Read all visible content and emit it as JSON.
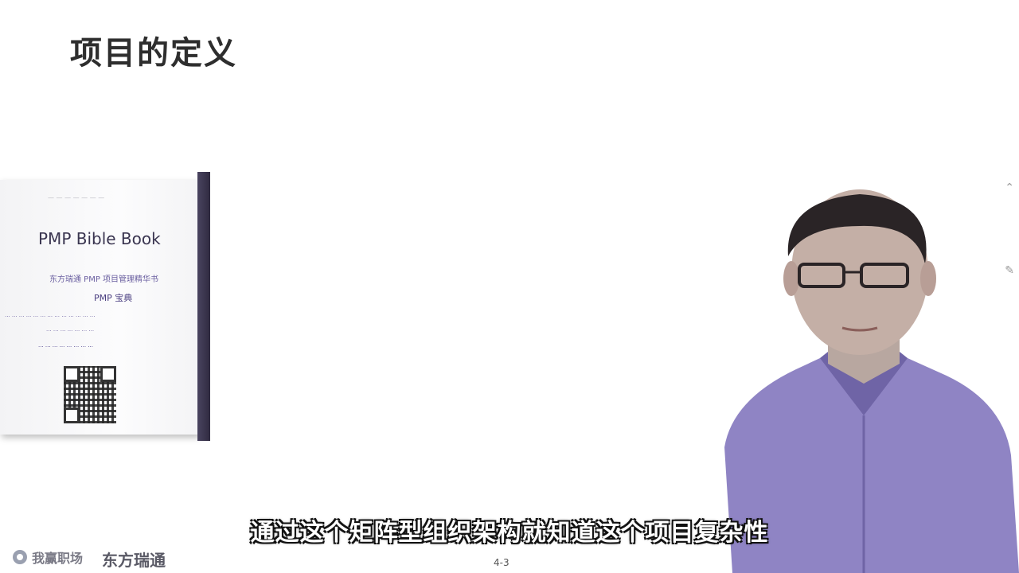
{
  "slide": {
    "title": "项目的定义",
    "page_number": "4-3"
  },
  "book": {
    "title": "PMP Bible Book",
    "subtitle_cn": "东方瑞通 PMP 项目管理精华书",
    "short_title": "PMP 宝典"
  },
  "caption": "通过这个矩阵型组织架构就知道这个项目复杂性",
  "logos": {
    "logo1": "我赢职场",
    "logo2": "东方瑞通"
  }
}
